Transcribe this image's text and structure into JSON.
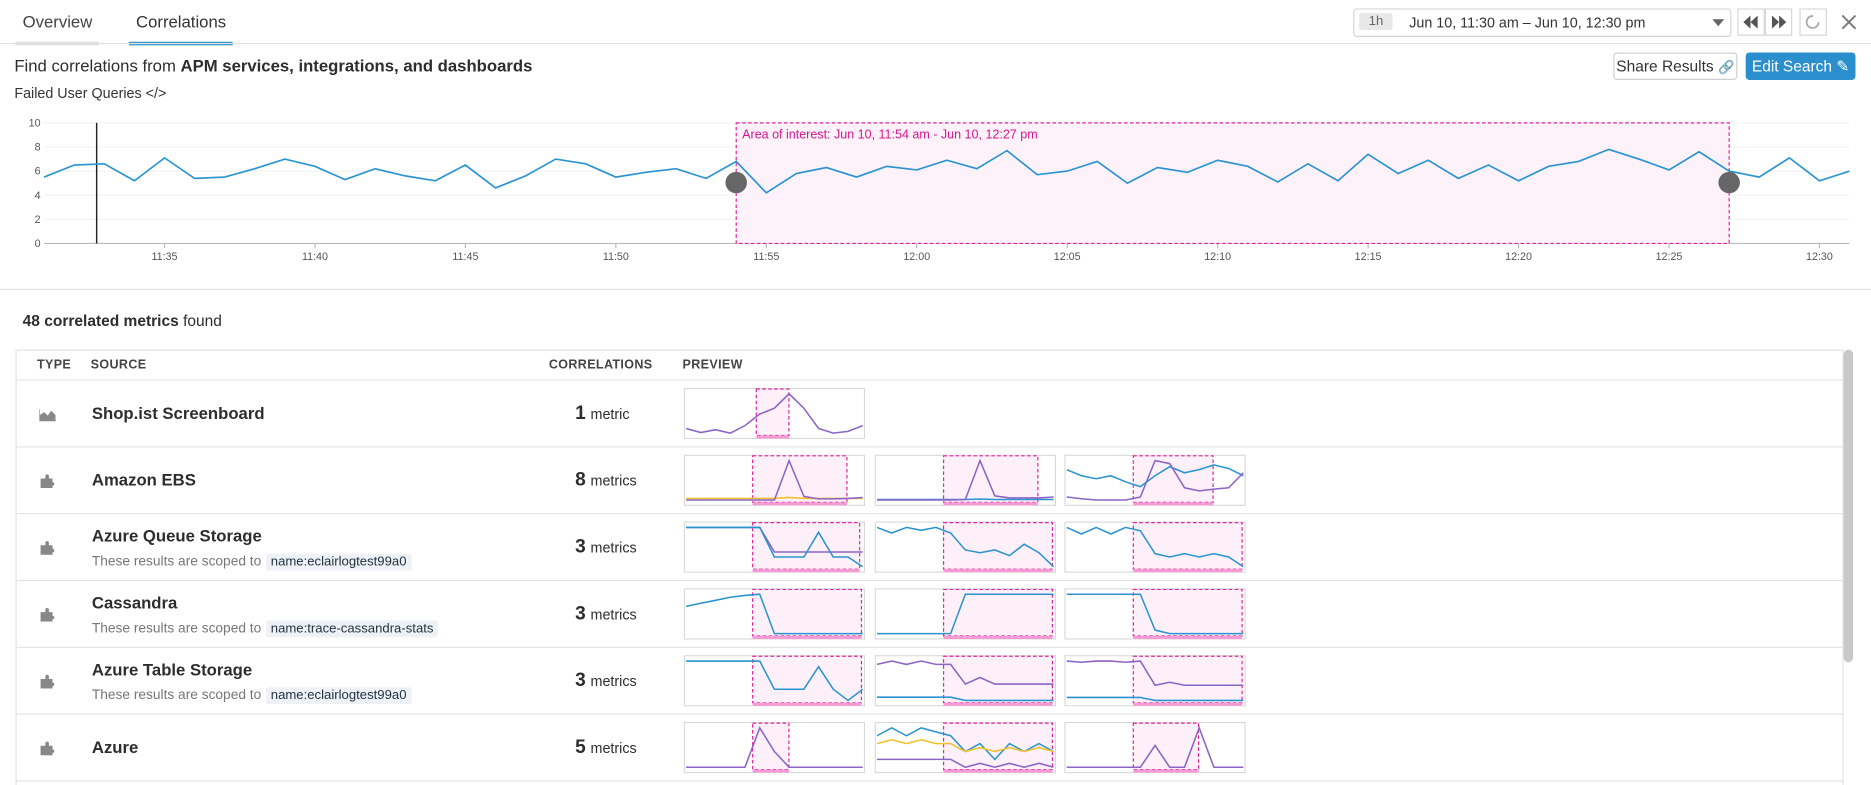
{
  "tabs": [
    "Overview",
    "Correlations"
  ],
  "time_picker": {
    "range": "1h",
    "label": "Jun 10, 11:30 am – Jun 10, 12:30 pm"
  },
  "header": {
    "prefix": "Find correlations from",
    "emphasis": "APM services, integrations, and dashboards",
    "buttons": [
      "Share Results",
      "Edit Search"
    ]
  },
  "chart": {
    "type": "line",
    "title": "Failed User Queries </>",
    "color": "#2b94d0",
    "x": [
      "11:31",
      "11:32",
      "11:33",
      "11:34",
      "11:35",
      "11:36",
      "11:37",
      "11:38",
      "11:39",
      "11:40",
      "11:41",
      "11:42",
      "11:43",
      "11:44",
      "11:45",
      "11:46",
      "11:47",
      "11:48",
      "11:49",
      "11:50",
      "11:51",
      "11:52",
      "11:53",
      "11:54",
      "11:55",
      "11:56",
      "11:57",
      "11:58",
      "11:59",
      "12:00",
      "12:01",
      "12:02",
      "12:03",
      "12:04",
      "12:05",
      "12:06",
      "12:07",
      "12:08",
      "12:09",
      "12:10",
      "12:11",
      "12:12",
      "12:13",
      "12:14",
      "12:15",
      "12:16",
      "12:17",
      "12:18",
      "12:19",
      "12:20",
      "12:21",
      "12:22",
      "12:23",
      "12:24",
      "12:25",
      "12:26",
      "12:27",
      "12:28",
      "12:29",
      "12:30",
      "12:31"
    ],
    "values": [
      5.5,
      6.5,
      6.6,
      5.2,
      7.1,
      5.4,
      5.5,
      6.2,
      7.0,
      6.4,
      5.3,
      6.2,
      5.6,
      5.2,
      6.5,
      4.6,
      5.6,
      7.0,
      6.6,
      5.5,
      5.9,
      6.2,
      5.4,
      6.8,
      4.2,
      5.8,
      6.3,
      5.5,
      6.4,
      6.1,
      6.9,
      6.2,
      7.7,
      5.7,
      6.0,
      6.8,
      5.0,
      6.3,
      5.9,
      6.9,
      6.4,
      5.1,
      6.6,
      5.2,
      7.4,
      5.8,
      6.9,
      5.4,
      6.5,
      5.2,
      6.4,
      6.8,
      7.8,
      7.0,
      6.1,
      7.6,
      6.0,
      5.5,
      7.1,
      5.2,
      6.0
    ],
    "xlim": [
      "11:31",
      "12:31"
    ],
    "ylim": [
      0,
      10
    ],
    "yticks": [
      0,
      2,
      4,
      6,
      8,
      10
    ],
    "xticks": [
      "11:35",
      "11:40",
      "11:45",
      "11:50",
      "11:55",
      "12:00",
      "12:05",
      "12:10",
      "12:15",
      "12:20",
      "12:25",
      "12:30"
    ],
    "area": {
      "start": "11:54",
      "end": "12:27",
      "label": "Area of interest: Jun 10, 11:54 am - Jun 10, 12:27 pm"
    }
  },
  "results": {
    "count_label": "48 correlated metrics",
    "suffix": "found",
    "columns": [
      "TYPE",
      "SOURCE",
      "CORRELATIONS",
      "PREVIEW"
    ],
    "rows": [
      {
        "source": "Shop.ist Screenboard",
        "count": 1,
        "unit": "metric",
        "previews": [
          {
            "series": [
              {
                "color": "#8b64c6",
                "values": [
                  2,
                  1.3,
                  1.8,
                  1.2,
                  2.5,
                  4.5,
                  5.5,
                  8,
                  5.5,
                  2,
                  1.2,
                  1.5,
                  2.5
                ]
              }
            ]
          }
        ]
      },
      {
        "source": "Amazon EBS",
        "count": 8,
        "unit": "metrics",
        "previews": [
          {
            "series": [
              {
                "color": "#f2c12e",
                "values": [
                  0.6,
                  0.6,
                  0.6,
                  0.6,
                  0.6,
                  0.6,
                  0.6,
                  0.8,
                  0.6,
                  0.6,
                  0.6,
                  0.6,
                  0.6
                ]
              },
              {
                "color": "#8b64c6",
                "values": [
                  0.3,
                  0.3,
                  0.3,
                  0.3,
                  0.3,
                  0.3,
                  0.3,
                  8,
                  1,
                  0.5,
                  0.5,
                  0.6,
                  0.8
                ]
              }
            ]
          },
          {
            "series": [
              {
                "color": "#2b94d0",
                "values": [
                  0.3,
                  0.3,
                  0.3,
                  0.3,
                  0.3,
                  0.3,
                  0.3,
                  0.4,
                  0.3,
                  0.3,
                  0.3,
                  0.3,
                  0.3
                ]
              },
              {
                "color": "#8b64c6",
                "values": [
                  0.2,
                  0.2,
                  0.2,
                  0.2,
                  0.2,
                  0.2,
                  0.3,
                  8,
                  1,
                  0.6,
                  0.6,
                  0.6,
                  0.8
                ]
              }
            ]
          },
          {
            "series": [
              {
                "color": "#2b94d0",
                "values": [
                  6,
                  5,
                  4.5,
                  5,
                  4,
                  3.2,
                  5,
                  6.5,
                  5.5,
                  6,
                  6.8,
                  6.2,
                  5
                ]
              },
              {
                "color": "#8b64c6",
                "values": [
                  1.5,
                  1.2,
                  1,
                  1,
                  1,
                  1.5,
                  7.5,
                  7,
                  3,
                  2.5,
                  2.8,
                  3,
                  5.5
                ]
              }
            ]
          }
        ]
      },
      {
        "source": "Azure Queue Storage",
        "scope_text": "These results are scoped to",
        "scope_tag": "name:eclairlogtest99a0",
        "count": 3,
        "unit": "metrics",
        "previews": [
          {
            "series": [
              {
                "color": "#8b64c6",
                "values": [
                  8,
                  8,
                  8,
                  8,
                  8,
                  8,
                  3,
                  3,
                  3,
                  3,
                  3,
                  3,
                  3
                ]
              },
              {
                "color": "#2b94d0",
                "values": [
                  8,
                  8,
                  8,
                  8,
                  8,
                  8,
                  2,
                  2,
                  2,
                  7,
                  2,
                  2,
                  0
                ]
              }
            ]
          },
          {
            "series": [
              {
                "color": "#2b94d0",
                "values": [
                  7,
                  6,
                  7,
                  6.5,
                  7,
                  6,
                  3,
                  2.5,
                  3,
                  2,
                  4,
                  2.5,
                  0
                ]
              }
            ]
          },
          {
            "series": [
              {
                "color": "#2b94d0",
                "values": [
                  7,
                  6,
                  7,
                  6,
                  7,
                  6.5,
                  3,
                  2.5,
                  3,
                  2.5,
                  3,
                  2.5,
                  1
                ]
              }
            ]
          }
        ]
      },
      {
        "source": "Cassandra",
        "scope_text": "These results are scoped to",
        "scope_tag": "name:trace-cassandra-stats",
        "count": 3,
        "unit": "metrics",
        "previews": [
          {
            "series": [
              {
                "color": "#2b94d0",
                "values": [
                  5,
                  5.5,
                  6,
                  6.5,
                  6.8,
                  7,
                  0.5,
                  0.5,
                  0.5,
                  0.5,
                  0.5,
                  0.5,
                  0.5
                ]
              }
            ]
          },
          {
            "series": [
              {
                "color": "#2b94d0",
                "values": [
                  2,
                  2,
                  2,
                  2,
                  2,
                  2,
                  8,
                  8,
                  8,
                  8,
                  8,
                  8,
                  8
                ]
              }
            ]
          },
          {
            "series": [
              {
                "color": "#2b94d0",
                "values": [
                  7,
                  7,
                  7,
                  7,
                  7,
                  7,
                  2,
                  1.5,
                  1.5,
                  1.5,
                  1.5,
                  1.5,
                  1.5
                ]
              }
            ]
          }
        ]
      },
      {
        "source": "Azure Table Storage",
        "scope_text": "These results are scoped to",
        "scope_tag": "name:eclairlogtest99a0",
        "count": 3,
        "unit": "metrics",
        "previews": [
          {
            "series": [
              {
                "color": "#2b94d0",
                "values": [
                  8,
                  8,
                  8,
                  8,
                  8,
                  8,
                  3,
                  3,
                  3,
                  7,
                  3,
                  1,
                  3
                ]
              }
            ]
          },
          {
            "series": [
              {
                "color": "#8b64c6",
                "values": [
                  6,
                  6.5,
                  6,
                  6.5,
                  6,
                  6,
                  3,
                  4,
                  3,
                  3,
                  3,
                  3,
                  3
                ]
              },
              {
                "color": "#2b94d0",
                "values": [
                  1,
                  1,
                  1,
                  1,
                  1,
                  1,
                  0.5,
                  0.5,
                  0.5,
                  0.5,
                  0.5,
                  0.5,
                  0.5
                ]
              }
            ]
          },
          {
            "series": [
              {
                "color": "#8b64c6",
                "values": [
                  7,
                  6.8,
                  7,
                  7,
                  6.8,
                  7,
                  3,
                  3.5,
                  3,
                  3,
                  3,
                  3,
                  3
                ]
              },
              {
                "color": "#2b94d0",
                "values": [
                  1,
                  1,
                  1,
                  1,
                  1,
                  1,
                  0.5,
                  0.5,
                  0.5,
                  0.5,
                  0.5,
                  0.5,
                  0.5
                ]
              }
            ]
          }
        ]
      },
      {
        "source": "Azure",
        "count": 5,
        "unit": "metrics",
        "previews": [
          {
            "series": [
              {
                "color": "#8b64c6",
                "values": [
                  0,
                  0,
                  0,
                  0,
                  0,
                  0.5,
                  0.2,
                  0,
                  0,
                  0,
                  0,
                  0,
                  0
                ]
              }
            ]
          },
          {
            "series": [
              {
                "color": "#2b94d0",
                "values": [
                  6,
                  7,
                  6,
                  7,
                  6.5,
                  6,
                  4,
                  5,
                  3,
                  5,
                  4,
                  5,
                  4
                ]
              },
              {
                "color": "#f2c12e",
                "values": [
                  5,
                  5.5,
                  5,
                  5.5,
                  5,
                  5,
                  4,
                  4.5,
                  4,
                  4.5,
                  4,
                  4.5,
                  4
                ]
              },
              {
                "color": "#8b64c6",
                "values": [
                  3,
                  3,
                  3,
                  3,
                  3,
                  3,
                  2,
                  2.5,
                  2,
                  2.5,
                  2,
                  2.5,
                  2
                ]
              }
            ]
          },
          {
            "series": [
              {
                "color": "#8b64c6",
                "values": [
                  0,
                  0,
                  0,
                  0,
                  0,
                  0,
                  5,
                  0,
                  0,
                  9,
                  0,
                  0,
                  0
                ]
              }
            ]
          }
        ]
      }
    ]
  }
}
